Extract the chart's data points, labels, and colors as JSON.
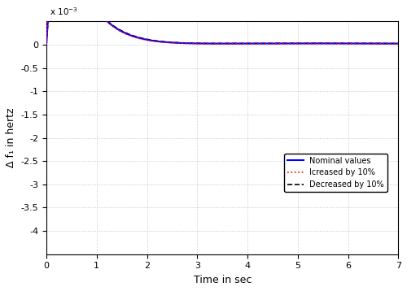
{
  "title": "",
  "xlabel": "Time in sec",
  "ylabel": "Δ f₁ in hertz",
  "xlim": [
    0,
    7
  ],
  "ylim": [
    -0.0045,
    0.0005
  ],
  "yticks": [
    -0.004,
    -0.0035,
    -0.003,
    -0.0025,
    -0.002,
    -0.0015,
    -0.001,
    -0.0005,
    0.0
  ],
  "xticks": [
    0,
    1,
    2,
    3,
    4,
    5,
    6,
    7
  ],
  "grid_color": "#aaaaaa",
  "nominal_color": "#0000ff",
  "increased_color": "#ff0000",
  "decreased_color": "#000000",
  "legend_labels": [
    "Nominal values",
    "Icreased by 10%",
    "Decreased by 10%"
  ],
  "background_color": "#ffffff",
  "y_scale_label": "x 10$^{-3}$"
}
